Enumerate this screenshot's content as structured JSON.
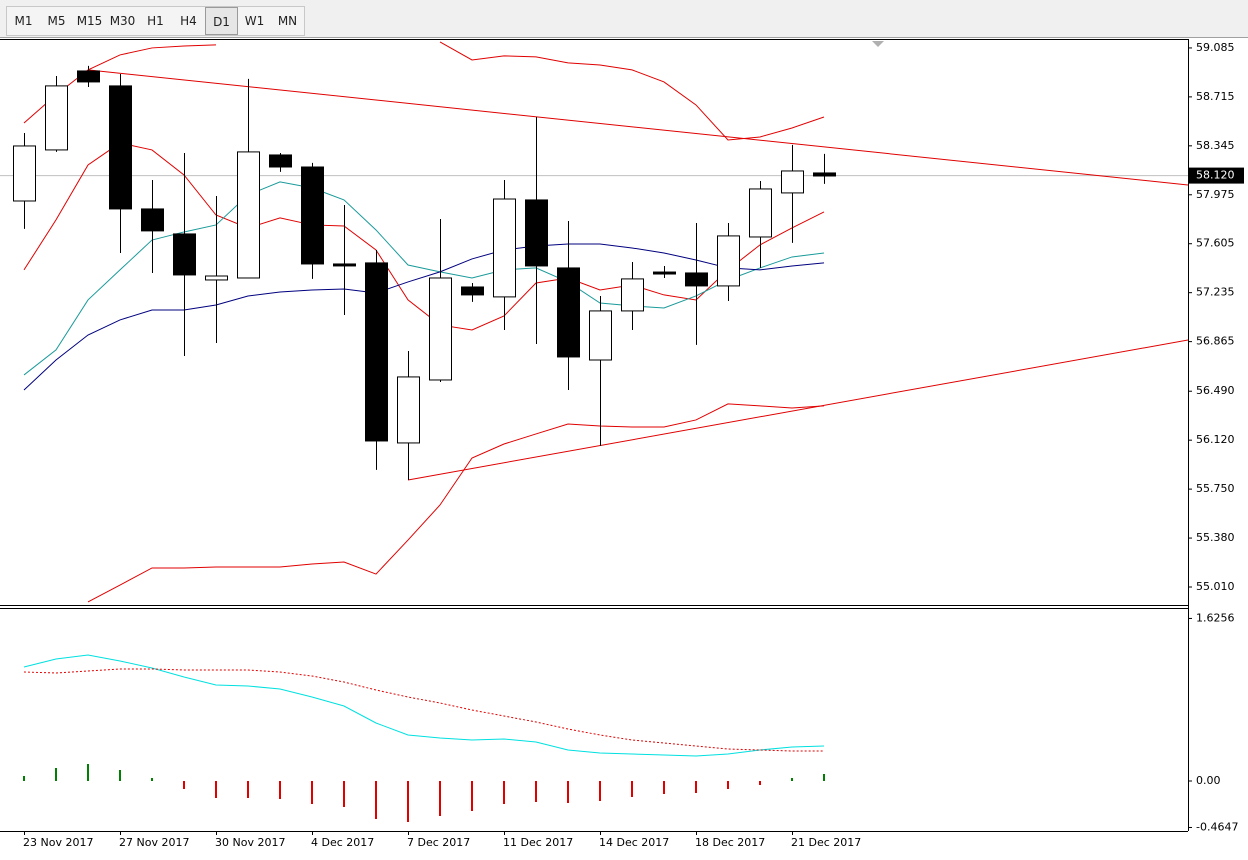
{
  "toolbar": {
    "buttons": [
      "M1",
      "M5",
      "M15",
      "M30",
      "H1",
      "H4",
      "D1",
      "W1",
      "MN"
    ],
    "active_index": 6
  },
  "chart_data": [
    {
      "type": "candlestick",
      "categories": [
        "23 Nov 2017",
        null,
        null,
        "27 Nov 2017",
        null,
        null,
        "30 Nov 2017",
        null,
        null,
        "4 Dec 2017",
        null,
        null,
        "7 Dec 2017",
        null,
        null,
        "11 Dec 2017",
        null,
        null,
        "14 Dec 2017",
        null,
        null,
        "18 Dec 2017",
        null,
        null,
        "21 Dec 2017",
        null
      ],
      "open": [
        57.928,
        58.314,
        58.911,
        58.798,
        57.868,
        57.679,
        57.331,
        57.346,
        58.276,
        58.185,
        57.452,
        57.46,
        56.099,
        56.575,
        57.278,
        57.203,
        57.936,
        57.422,
        56.726,
        57.097,
        57.391,
        57.384,
        57.286,
        57.656,
        57.989,
        58.14
      ],
      "high": [
        58.442,
        58.873,
        58.949,
        58.888,
        58.087,
        58.291,
        57.966,
        58.851,
        58.291,
        58.216,
        57.898,
        57.558,
        56.794,
        57.792,
        57.308,
        58.087,
        58.563,
        57.777,
        57.21,
        57.467,
        57.437,
        57.762,
        57.762,
        58.079,
        58.352,
        58.284
      ],
      "low": [
        57.717,
        58.299,
        58.79,
        57.535,
        57.384,
        56.756,
        56.855,
        57.346,
        58.148,
        57.339,
        57.066,
        55.895,
        55.819,
        56.56,
        57.165,
        56.953,
        56.847,
        56.499,
        56.076,
        56.953,
        57.346,
        56.84,
        57.172,
        57.422,
        57.611,
        58.057
      ],
      "close": [
        58.344,
        58.798,
        58.828,
        57.868,
        57.702,
        57.369,
        57.361,
        58.299,
        58.185,
        57.452,
        57.437,
        56.114,
        56.598,
        57.346,
        57.218,
        57.943,
        57.437,
        56.749,
        57.097,
        57.339,
        57.376,
        57.286,
        57.664,
        58.019,
        58.155,
        58.117
      ],
      "up_color": "#ffffff",
      "down_color": "#000000",
      "overlays": [
        {
          "color": "#e00000",
          "values": [
            58.518,
            58.73,
            58.919,
            59.032,
            59.085,
            59.1,
            59.108,
            null,
            null,
            null,
            null,
            null,
            null,
            59.13,
            58.994,
            59.025,
            59.017,
            58.972,
            58.956,
            58.919,
            58.828,
            58.654,
            58.389,
            58.412,
            58.48,
            58.563
          ]
        },
        {
          "color": "#e00000",
          "values": [
            57.407,
            57.785,
            58.2,
            58.367,
            58.314,
            58.125,
            57.822,
            57.724,
            57.8,
            57.747,
            57.739,
            57.558,
            57.18,
            56.991,
            56.953,
            57.059,
            57.308,
            57.346,
            57.255,
            57.293,
            57.218,
            57.18,
            57.407,
            57.596,
            57.724,
            57.845
          ]
        },
        {
          "color": "#e00000",
          "values": [
            null,
            null,
            54.897,
            55.025,
            55.154,
            55.154,
            55.161,
            55.161,
            55.161,
            55.184,
            55.199,
            55.108,
            55.365,
            55.63,
            55.985,
            56.091,
            56.167,
            56.242,
            56.227,
            56.22,
            56.22,
            56.273,
            56.394,
            56.379,
            56.363,
            56.379
          ]
        },
        {
          "color": "#1a9a9a",
          "values": [
            56.613,
            56.802,
            57.18,
            57.407,
            57.633,
            57.694,
            57.747,
            57.974,
            58.072,
            58.027,
            57.936,
            57.709,
            57.444,
            57.392,
            57.346,
            57.407,
            57.422,
            57.316,
            57.157,
            57.135,
            57.119,
            57.21,
            57.331,
            57.422,
            57.505,
            57.535
          ]
        },
        {
          "color": "#00007f",
          "values": [
            56.499,
            56.726,
            56.915,
            57.029,
            57.104,
            57.104,
            57.142,
            57.21,
            57.24,
            57.255,
            57.263,
            57.233,
            57.316,
            57.392,
            57.49,
            57.558,
            57.588,
            57.603,
            57.603,
            57.573,
            57.535,
            57.482,
            57.422,
            57.407,
            57.437,
            57.46
          ]
        }
      ],
      "trendlines": [
        {
          "color": "#e00000",
          "x": [
            2,
            36.375
          ],
          "y": [
            58.919,
            58.049
          ]
        },
        {
          "color": "#e00000",
          "x": [
            12,
            36.375
          ],
          "y": [
            55.819,
            56.877
          ]
        }
      ],
      "current_price": {
        "value": 58.12,
        "label": "58.120"
      },
      "ylim": [
        54.874,
        59.145
      ],
      "yticks": [
        59.085,
        58.715,
        58.345,
        57.975,
        57.605,
        57.235,
        56.865,
        {
          "value": 56.49,
          "label": "56.490"
        },
        {
          "value": 56.12,
          "label": "56.120"
        },
        {
          "value": 55.75,
          "label": "55.750"
        },
        {
          "value": 55.38,
          "label": "55.380"
        },
        {
          "value": 55.01,
          "label": "55.010"
        }
      ]
    },
    {
      "type": "macd",
      "histogram": [
        0.05,
        0.13,
        0.17,
        0.11,
        0.03,
        -0.08,
        -0.17,
        -0.17,
        -0.18,
        -0.23,
        -0.26,
        -0.38,
        -0.41,
        -0.35,
        -0.3,
        -0.23,
        -0.21,
        -0.22,
        -0.2,
        -0.16,
        -0.13,
        -0.12,
        -0.08,
        -0.04,
        0.03,
        0.07
      ],
      "up_color": "#008000",
      "down_color": "#e00000",
      "main": {
        "color": "#00e0e0",
        "values": [
          1.14,
          1.22,
          1.26,
          1.2,
          1.13,
          1.04,
          0.96,
          0.95,
          0.92,
          0.84,
          0.75,
          0.58,
          0.46,
          0.43,
          0.41,
          0.42,
          0.39,
          0.31,
          0.28,
          0.27,
          0.26,
          0.25,
          0.27,
          0.31,
          0.34,
          0.35
        ]
      },
      "signal": {
        "color": "#e00000",
        "values": [
          1.09,
          1.08,
          1.1,
          1.12,
          1.12,
          1.11,
          1.11,
          1.11,
          1.09,
          1.05,
          0.99,
          0.91,
          0.84,
          0.78,
          0.71,
          0.65,
          0.59,
          0.52,
          0.46,
          0.41,
          0.38,
          0.35,
          0.32,
          0.31,
          0.3,
          0.3
        ]
      },
      "ylim": [
        -0.5,
        1.72
      ],
      "yticks": [
        1.6256,
        {
          "value": 0,
          "label": "0.00"
        },
        -0.4647
      ]
    }
  ]
}
